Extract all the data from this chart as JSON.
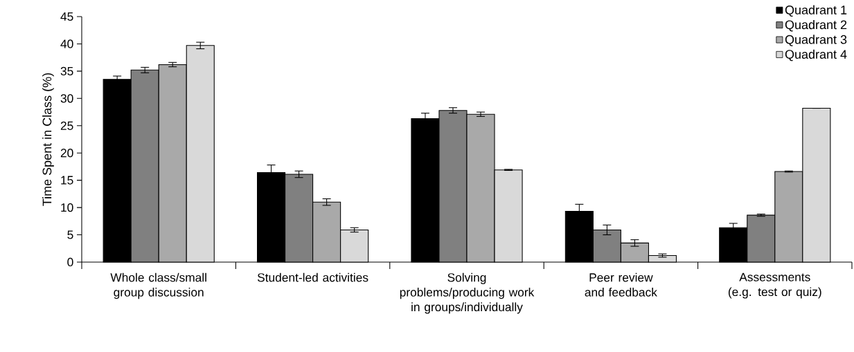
{
  "chart_data": {
    "type": "bar",
    "ylabel": "Time Spent in Class (%)",
    "categories": [
      "Whole class/small group discussion",
      "Student-led activities",
      "Solving problems/producing work in groups/individually",
      "Peer review and feedback",
      "Assessments (e.g. test or quiz)"
    ],
    "series": [
      {
        "name": "Quadrant 1",
        "color": "#000000",
        "values": [
          33.5,
          16.4,
          26.3,
          9.3,
          6.3
        ],
        "errors": [
          0.6,
          1.4,
          1.0,
          1.3,
          0.8
        ]
      },
      {
        "name": "Quadrant 2",
        "color": "#808080",
        "values": [
          35.2,
          16.1,
          27.8,
          5.9,
          8.6
        ],
        "errors": [
          0.5,
          0.6,
          0.5,
          0.9,
          0.2
        ]
      },
      {
        "name": "Quadrant 3",
        "color": "#a9a9a9",
        "values": [
          36.2,
          11.0,
          27.1,
          3.5,
          16.6
        ],
        "errors": [
          0.4,
          0.6,
          0.4,
          0.6,
          0.1
        ]
      },
      {
        "name": "Quadrant 4",
        "color": "#d9d9d9",
        "values": [
          39.7,
          5.9,
          16.9,
          1.2,
          28.2
        ],
        "errors": [
          0.6,
          0.4,
          0.1,
          0.3,
          0
        ]
      }
    ],
    "ylim": [
      0,
      45
    ],
    "yticks": [
      0,
      5,
      10,
      15,
      20,
      25,
      30,
      35,
      40,
      45
    ],
    "legend": "top right"
  }
}
